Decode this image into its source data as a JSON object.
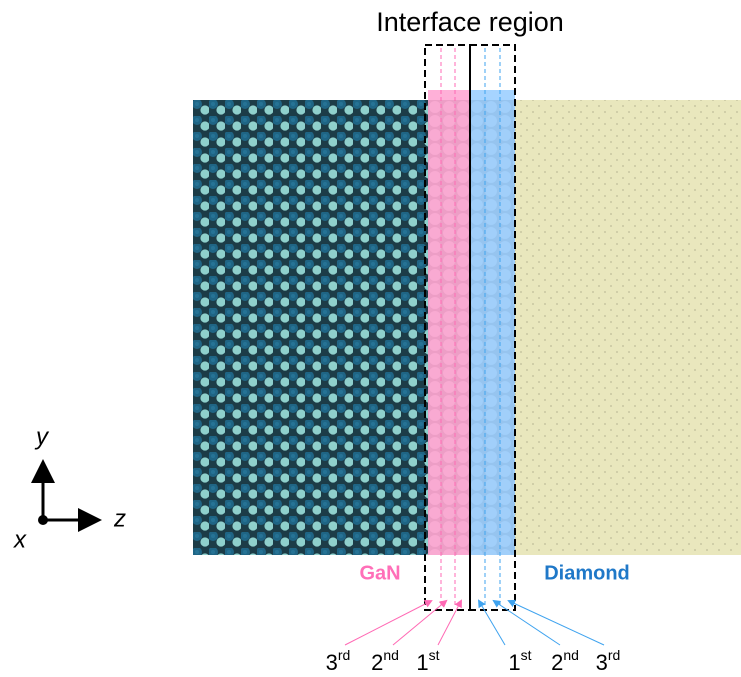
{
  "title": "Interface region",
  "labels": {
    "gan": "GaN",
    "diamond": "Diamond"
  },
  "layers": {
    "gan": [
      {
        "num": "3",
        "sup": "rd"
      },
      {
        "num": "2",
        "sup": "nd"
      },
      {
        "num": "1",
        "sup": "st"
      }
    ],
    "diamond": [
      {
        "num": "1",
        "sup": "st"
      },
      {
        "num": "2",
        "sup": "nd"
      },
      {
        "num": "3",
        "sup": "rd"
      }
    ]
  },
  "axes": {
    "y": "y",
    "z": "z",
    "x": "x"
  }
}
